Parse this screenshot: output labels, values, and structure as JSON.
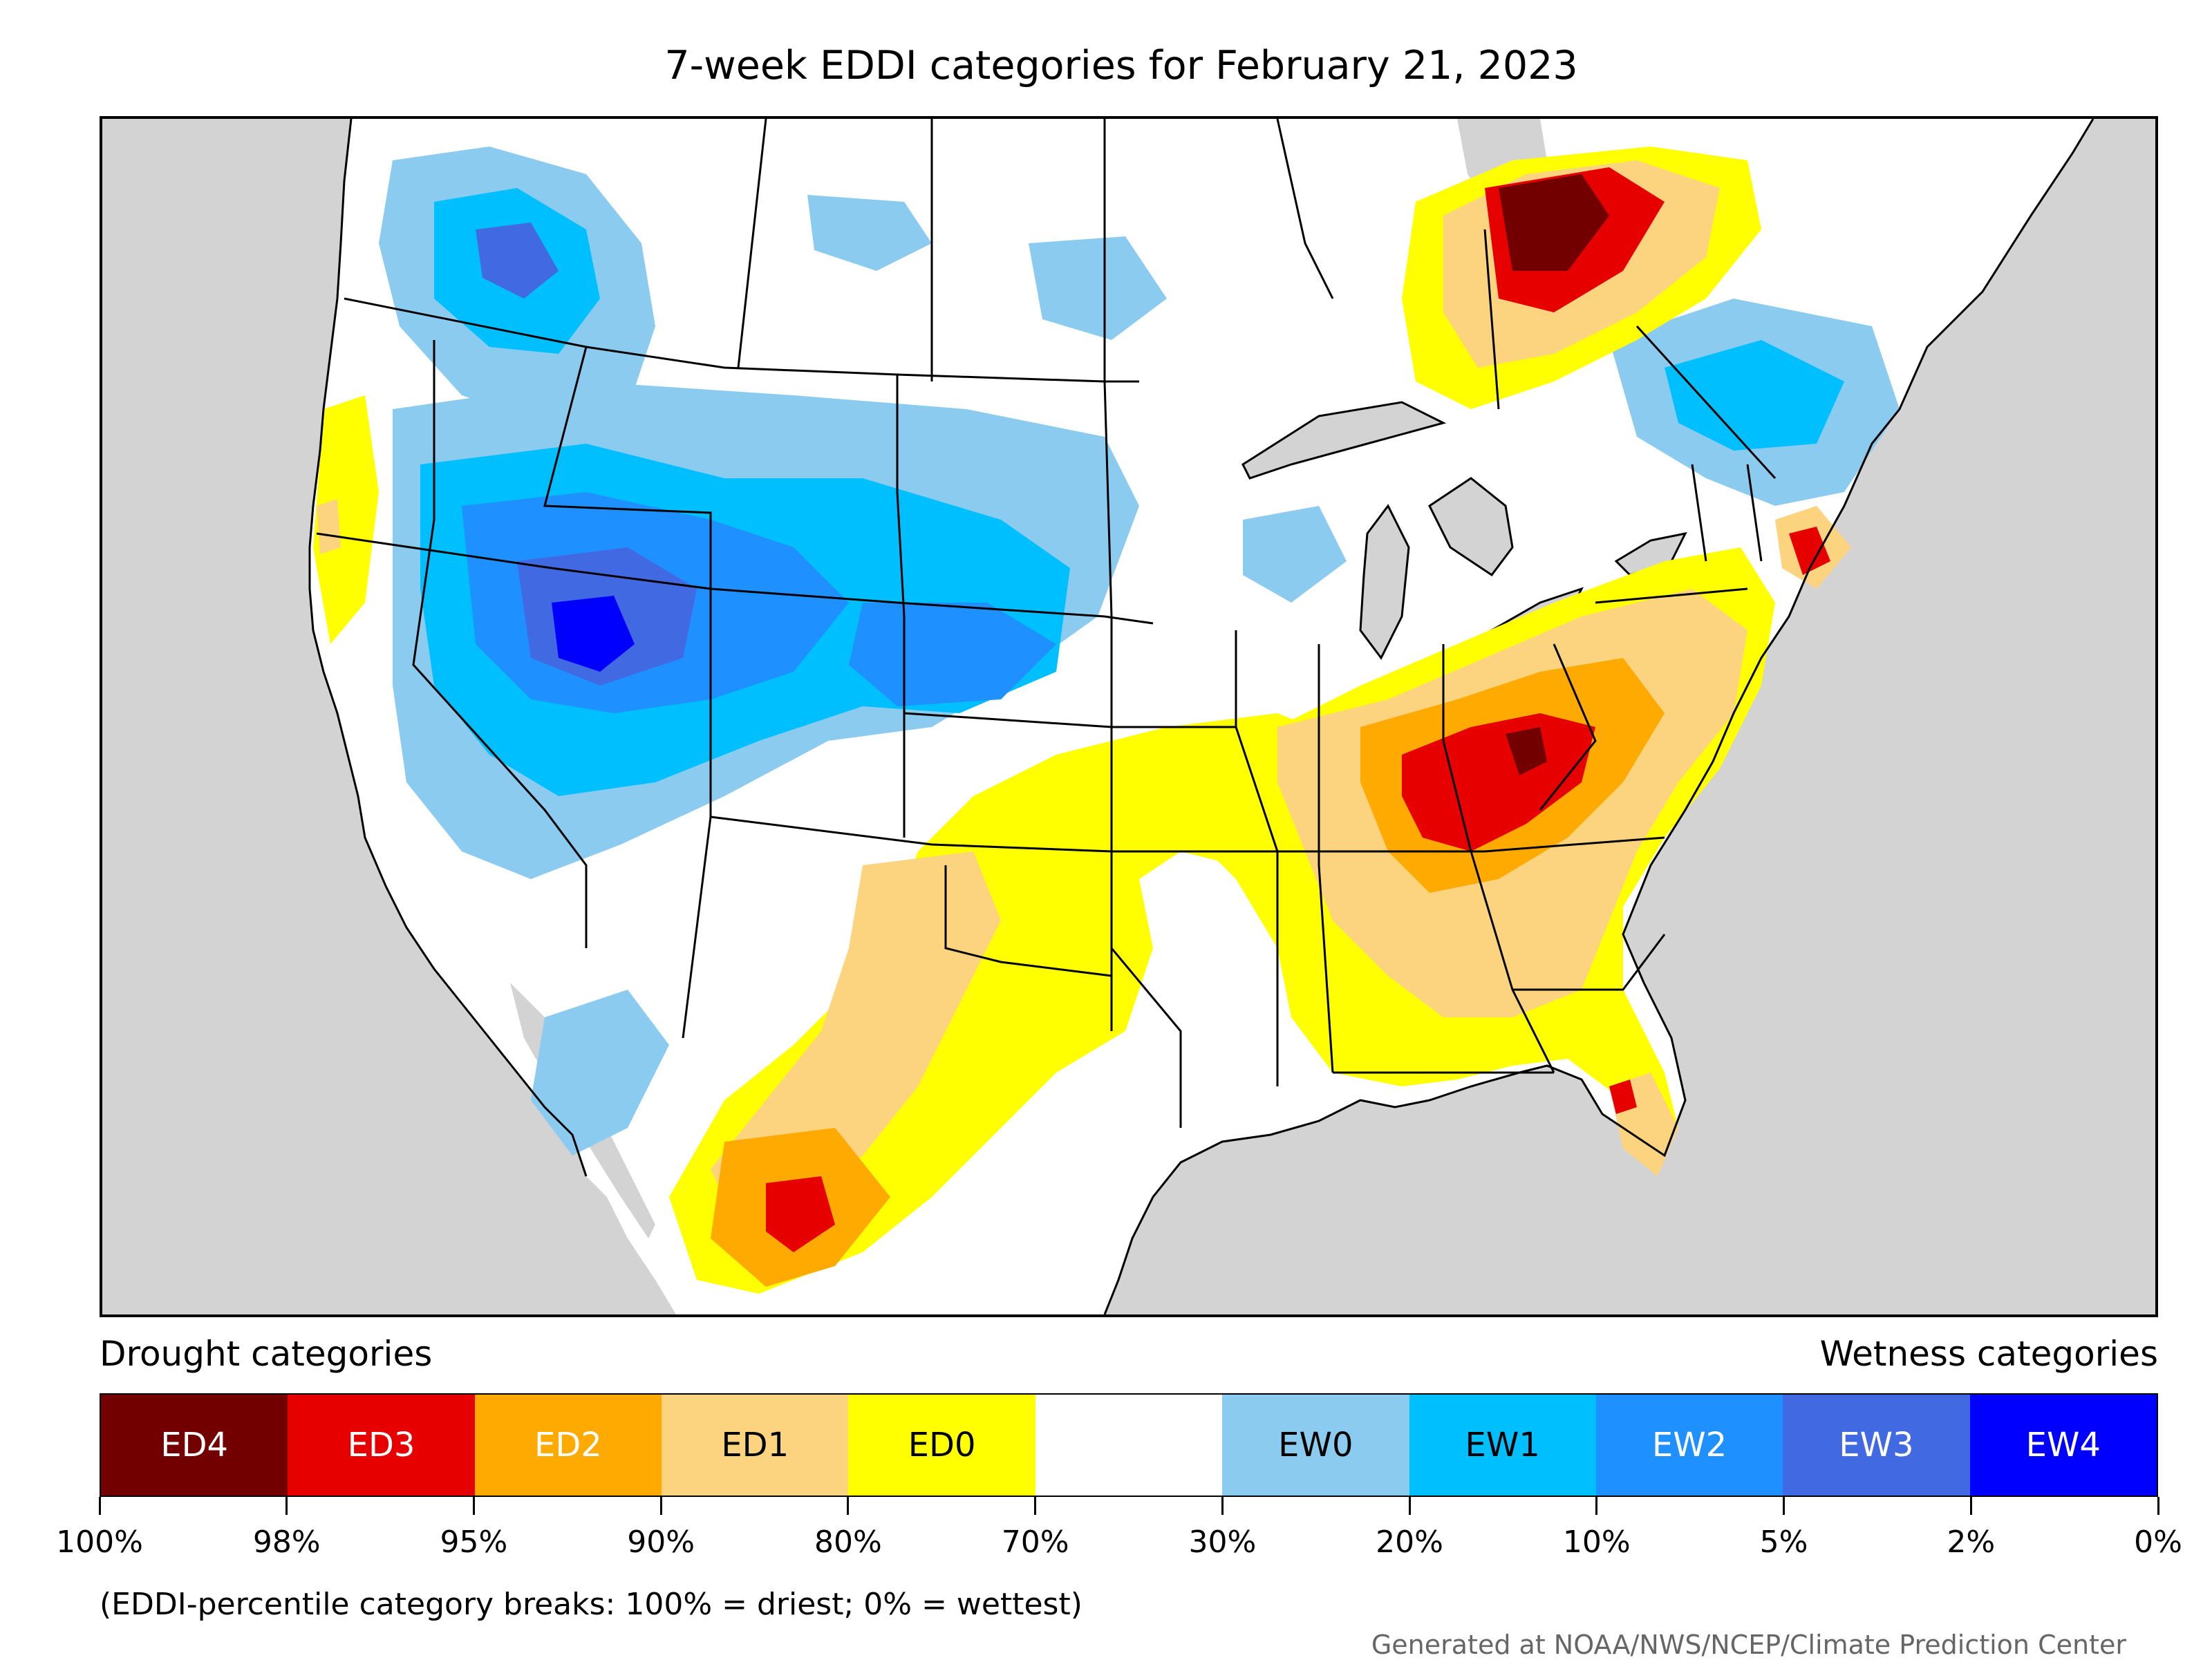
{
  "title": "7-week EDDI categories for February 21, 2023",
  "legend": {
    "left_caption": "Drought categories",
    "right_caption": "Wetness categories",
    "categories": [
      {
        "label": "ED4",
        "color": "#730000",
        "text_color": "#ffffff"
      },
      {
        "label": "ED3",
        "color": "#e60000",
        "text_color": "#ffffff"
      },
      {
        "label": "ED2",
        "color": "#ffaa00",
        "text_color": "#ffffff"
      },
      {
        "label": "ED1",
        "color": "#fcd37f",
        "text_color": "#000000"
      },
      {
        "label": "ED0",
        "color": "#ffff00",
        "text_color": "#000000"
      },
      {
        "label": "",
        "color": "#ffffff",
        "text_color": "#000000"
      },
      {
        "label": "EW0",
        "color": "#8ccbf0",
        "text_color": "#000000"
      },
      {
        "label": "EW1",
        "color": "#00bfff",
        "text_color": "#000000"
      },
      {
        "label": "EW2",
        "color": "#1e90ff",
        "text_color": "#ffffff"
      },
      {
        "label": "EW3",
        "color": "#4169e1",
        "text_color": "#ffffff"
      },
      {
        "label": "EW4",
        "color": "#0000ff",
        "text_color": "#ffffff"
      }
    ],
    "breaks": [
      "100%",
      "98%",
      "95%",
      "90%",
      "80%",
      "70%",
      "30%",
      "20%",
      "10%",
      "5%",
      "2%",
      "0%"
    ]
  },
  "note": "(EDDI-percentile category breaks: 100% = driest; 0% = wettest)",
  "credit": "Generated at NOAA/NWS/NCEP/Climate Prediction Center",
  "colors": {
    "ocean": "#d3d3d3",
    "land": "#ffffff",
    "border": "#000000"
  }
}
